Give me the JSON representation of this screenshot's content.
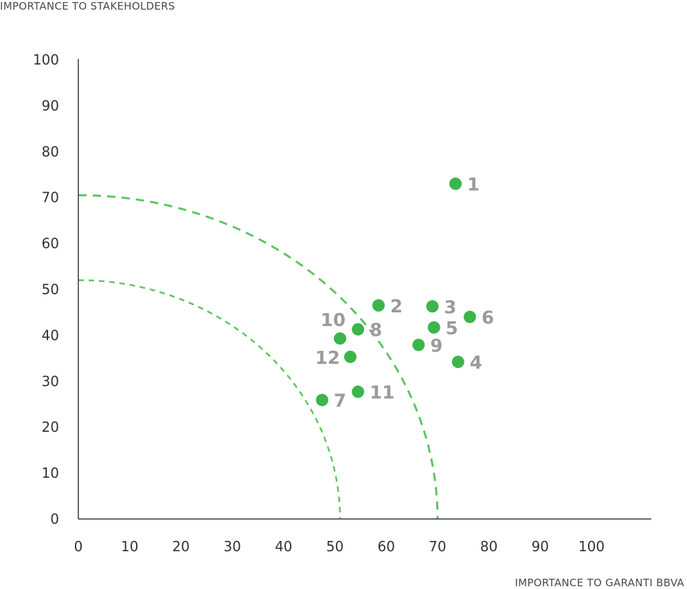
{
  "chart_data": {
    "type": "scatter",
    "ylabel": "IMPORTANCE TO STAKEHOLDERS",
    "xlabel": "IMPORTANCE TO GARANTI BBVA",
    "xlim": [
      0,
      110
    ],
    "ylim": [
      0,
      100
    ],
    "xticks": [
      "0",
      "10",
      "20",
      "30",
      "40",
      "50",
      "60",
      "70",
      "80",
      "90",
      "100"
    ],
    "yticks": [
      "0",
      "10",
      "20",
      "30",
      "40",
      "50",
      "60",
      "70",
      "80",
      "90",
      "100"
    ],
    "grid": false,
    "marker_color": "#3cb54a",
    "label_color": "#9b9b9b",
    "threshold_color": "#5cc65e",
    "thresholds": [
      {
        "radius_x": 51,
        "radius_y": 52
      },
      {
        "radius_x": 70,
        "radius_y": 70.5
      }
    ],
    "points": [
      {
        "label": "1",
        "x": 73.5,
        "y": 73,
        "label_pos": "right"
      },
      {
        "label": "2",
        "x": 58.5,
        "y": 46.5,
        "label_pos": "right"
      },
      {
        "label": "3",
        "x": 69,
        "y": 46.3,
        "label_pos": "right"
      },
      {
        "label": "4",
        "x": 74,
        "y": 34.2,
        "label_pos": "right"
      },
      {
        "label": "5",
        "x": 69.3,
        "y": 41.7,
        "label_pos": "right"
      },
      {
        "label": "6",
        "x": 76.3,
        "y": 44,
        "label_pos": "right"
      },
      {
        "label": "7",
        "x": 47.5,
        "y": 25.9,
        "label_pos": "right"
      },
      {
        "label": "8",
        "x": 54.5,
        "y": 41.3,
        "label_pos": "right"
      },
      {
        "label": "9",
        "x": 66.3,
        "y": 37.9,
        "label_pos": "right"
      },
      {
        "label": "10",
        "x": 51,
        "y": 39.3,
        "label_pos": "top-left"
      },
      {
        "label": "11",
        "x": 54.5,
        "y": 27.7,
        "label_pos": "right"
      },
      {
        "label": "12",
        "x": 53,
        "y": 35.3,
        "label_pos": "left"
      }
    ]
  }
}
